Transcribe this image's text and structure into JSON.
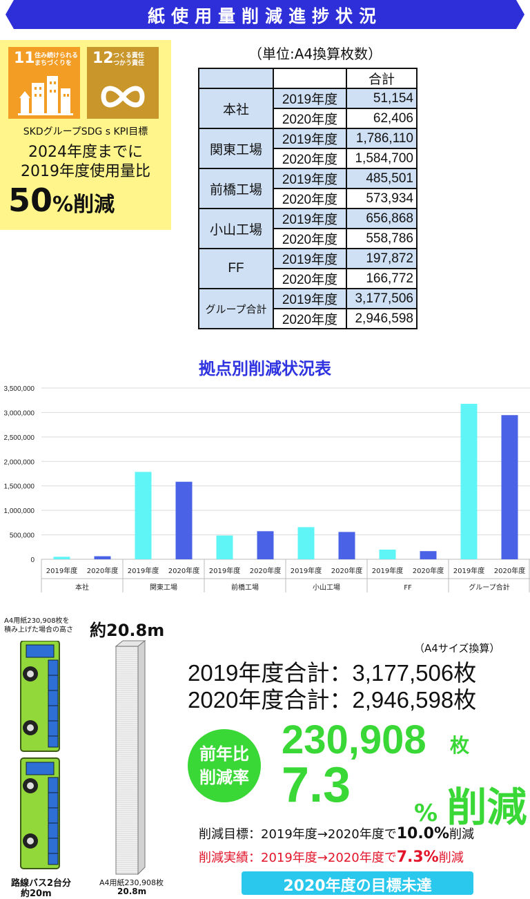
{
  "header": {
    "title": "紙使用量削減進捗状況"
  },
  "sdg": {
    "tile11": {
      "num": "11",
      "text": "住み続けられる\nまちづくりを",
      "color": "#f49d25"
    },
    "tile12": {
      "num": "12",
      "text": "つくる責任\nつかう責任",
      "color": "#c9962c"
    },
    "kpi_label": "SKDグループSDG s KPI目標",
    "line1": "2024年度までに",
    "line2": "2019年度使用量比",
    "big_value": "50",
    "big_unit": "%削減"
  },
  "table": {
    "unit": "（単位:A4換算枚数）",
    "header": "合計",
    "rows": [
      {
        "location": "本社",
        "y1": "2019年度",
        "v1": "51,154",
        "y2": "2020年度",
        "v2": "62,406"
      },
      {
        "location": "関東工場",
        "y1": "2019年度",
        "v1": "1,786,110",
        "y2": "2020年度",
        "v2": "1,584,700"
      },
      {
        "location": "前橋工場",
        "y1": "2019年度",
        "v1": "485,501",
        "y2": "2020年度",
        "v2": "573,934"
      },
      {
        "location": "小山工場",
        "y1": "2019年度",
        "v1": "656,868",
        "y2": "2020年度",
        "v2": "558,786"
      },
      {
        "location": "FF",
        "y1": "2019年度",
        "v1": "197,872",
        "y2": "2020年度",
        "v2": "166,772"
      },
      {
        "location": "グループ合計",
        "y1": "2019年度",
        "v1": "3,177,506",
        "y2": "2020年度",
        "v2": "2,946,598"
      }
    ]
  },
  "chart_data": {
    "type": "bar",
    "title": "拠点別削減状況表",
    "categories": [
      "本社",
      "関東工場",
      "前橋工場",
      "小山工場",
      "FF",
      "グループ合計"
    ],
    "series": [
      {
        "name": "2019年度",
        "values": [
          51154,
          1786110,
          485501,
          656868,
          197872,
          3177506
        ],
        "color": "#5ff4f6"
      },
      {
        "name": "2020年度",
        "values": [
          62406,
          1584700,
          573934,
          558786,
          166772,
          2946598
        ],
        "color": "#4a63e6"
      }
    ],
    "ylim": [
      0,
      3500000
    ],
    "yticks": [
      0,
      500000,
      1000000,
      1500000,
      2000000,
      2500000,
      3000000,
      3500000
    ],
    "ytick_labels": [
      "0",
      "500,000",
      "1,000,000",
      "1,500,000",
      "2,000,000",
      "2,500,000",
      "3,000,000",
      "3,500,000"
    ],
    "grid": true
  },
  "illustration": {
    "stack_caption_1": "A4用紙230,908枚を",
    "stack_caption_2": "積み上げた場合の高さ",
    "stack_height": "約20.8m",
    "bus_label_1": "路線バス2台分",
    "bus_label_2": "約20m",
    "paper_label_1": "A4用紙230,908枚",
    "paper_label_2": "20.8m"
  },
  "totals": {
    "unit_note": "（A4サイズ換算）",
    "total_2019": "2019年度合計：3,177,506枚",
    "total_2020": "2020年度合計：2,946,598枚"
  },
  "result": {
    "badge_line1": "前年比",
    "badge_line2": "削減率",
    "count": "230,908",
    "count_unit": "枚",
    "rate": "7.3",
    "rate_unit": "%",
    "rate_suffix": "削減",
    "goal_prefix": "削減目標：2019年度→2020年度で",
    "goal_value": "10.0%",
    "goal_suffix": "削減",
    "actual_prefix": "削減実績：2019年度→2020年度で",
    "actual_value": "7.3%",
    "actual_suffix": "削減",
    "status": "2020年度の目標未達"
  }
}
